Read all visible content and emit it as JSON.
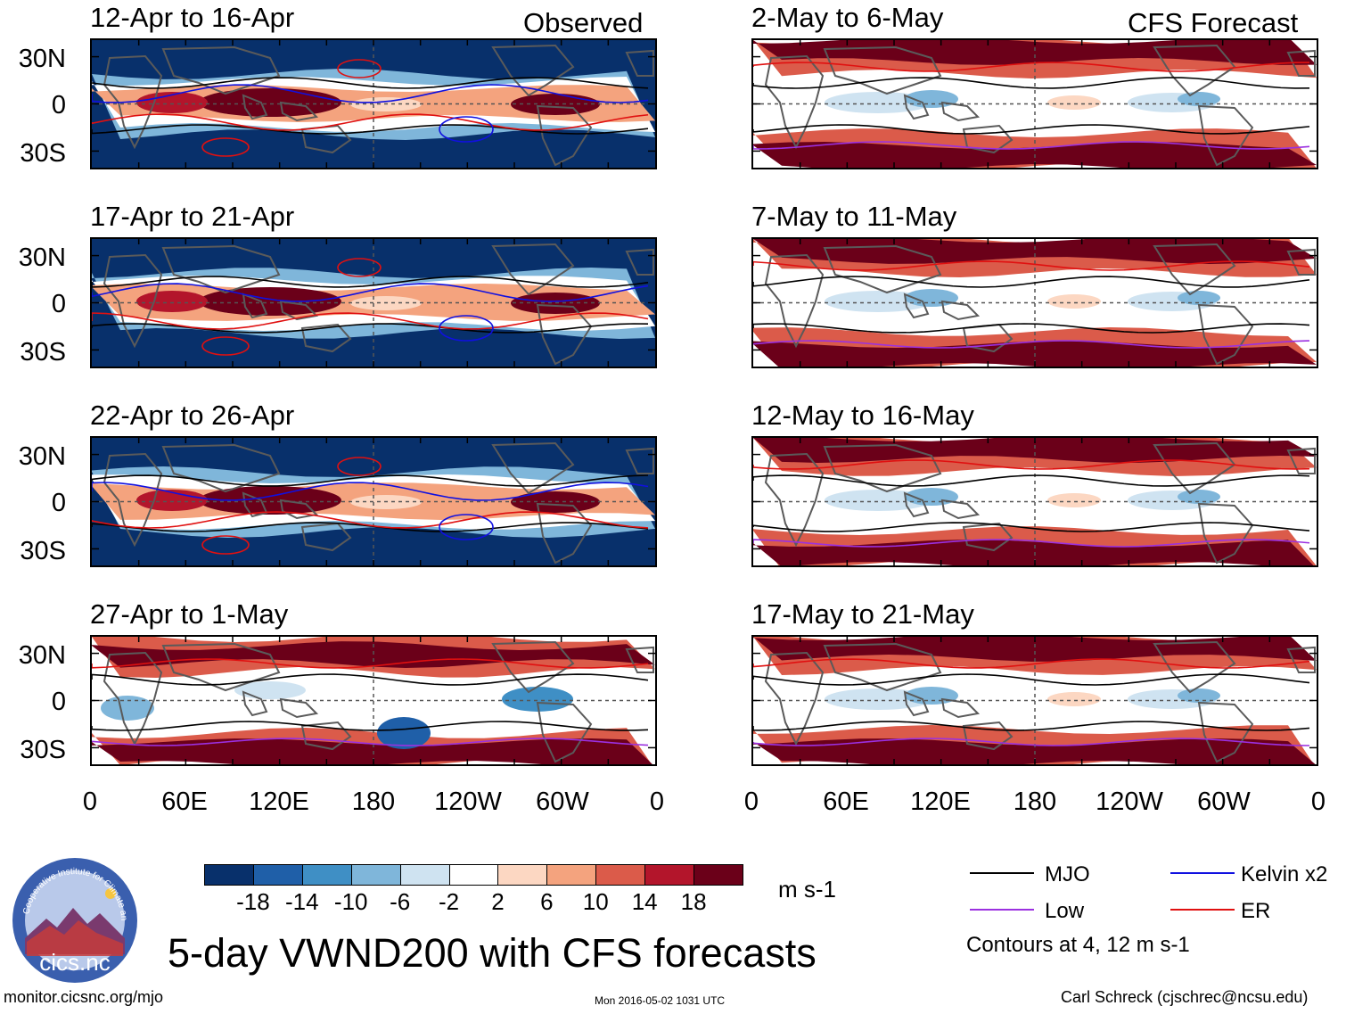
{
  "header": {
    "observed_label": "Observed",
    "forecast_label": "CFS Forecast"
  },
  "panels": {
    "left": [
      {
        "title": "12-Apr to 16-Apr",
        "style": "observed"
      },
      {
        "title": "17-Apr to 21-Apr",
        "style": "observed"
      },
      {
        "title": "22-Apr to 26-Apr",
        "style": "observed"
      },
      {
        "title": "27-Apr to 1-May",
        "style": "mixed"
      }
    ],
    "right": [
      {
        "title": "2-May to 6-May",
        "style": "forecast"
      },
      {
        "title": "7-May to 11-May",
        "style": "forecast"
      },
      {
        "title": "12-May to 16-May",
        "style": "forecast"
      },
      {
        "title": "17-May to 21-May",
        "style": "forecast"
      }
    ]
  },
  "axes": {
    "lat_labels": [
      "30N",
      "0",
      "30S"
    ],
    "lon_labels": [
      "0",
      "60E",
      "120E",
      "180",
      "120W",
      "60W",
      "0"
    ]
  },
  "colorbar": {
    "colors": [
      "#08306b",
      "#1f5fa8",
      "#3f8fc5",
      "#7fb6da",
      "#cfe3f1",
      "#ffffff",
      "#fcd7c2",
      "#f4a37e",
      "#db5b4a",
      "#b3152b",
      "#6b0019"
    ],
    "tick_labels": [
      "-18",
      "-14",
      "-10",
      "-6",
      "-2",
      "2",
      "6",
      "10",
      "14",
      "18"
    ],
    "unit": "m s-1"
  },
  "legend": {
    "mjo": {
      "label": "MJO",
      "color": "#000000"
    },
    "kelvin": {
      "label": "Kelvin x2",
      "color": "#1010e0"
    },
    "low": {
      "label": "Low",
      "color": "#9b30e0"
    },
    "er": {
      "label": "ER",
      "color": "#e01010"
    },
    "contours_note": "Contours at 4, 12 m s-1"
  },
  "logo": {
    "text": "cics.nc",
    "ring_text": "Cooperative Institute for Climate and Satellites"
  },
  "main_title": "5-day VWND200 with CFS forecasts",
  "footer": {
    "url": "monitor.cicsnc.org/mjo",
    "timestamp": "Mon 2016-05-02 1031 UTC",
    "author": "Carl Schreck (cjschrec@ncsu.edu)"
  }
}
